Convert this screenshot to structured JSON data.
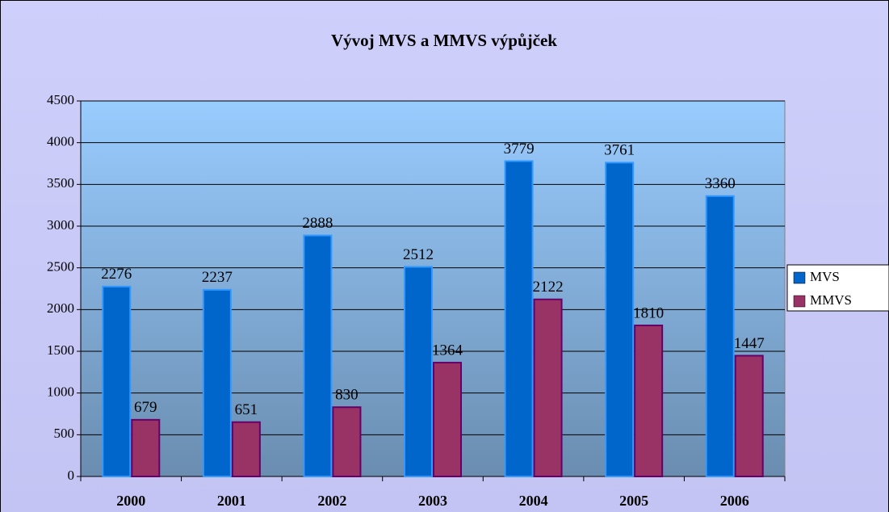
{
  "chart_data": {
    "type": "bar",
    "title": "Vývoj MVS a MMVS výpůjček",
    "categories": [
      "2000",
      "2001",
      "2002",
      "2003",
      "2004",
      "2005",
      "2006"
    ],
    "series": [
      {
        "name": "MVS",
        "color": "#0066cc",
        "values": [
          2276,
          2237,
          2888,
          2512,
          3779,
          3761,
          3360
        ]
      },
      {
        "name": "MMVS",
        "color": "#993366",
        "values": [
          679,
          651,
          830,
          1364,
          2122,
          1810,
          1447
        ]
      }
    ],
    "ylim": [
      0,
      4500
    ],
    "yticks": [
      0,
      500,
      1000,
      1500,
      2000,
      2500,
      3000,
      3500,
      4000,
      4500
    ],
    "grid": true,
    "legend": "right"
  }
}
